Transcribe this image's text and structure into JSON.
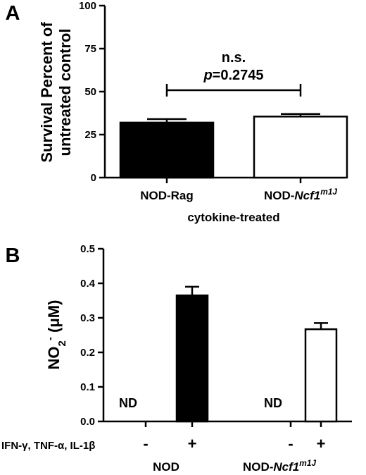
{
  "chart_data": [
    {
      "panel_label": "A",
      "type": "bar",
      "categories": [
        "NOD-Rag",
        "NOD-Ncf1m1J"
      ],
      "category_parts": [
        [
          {
            "text": "NOD-Rag",
            "italic": false
          }
        ],
        [
          {
            "text": "NOD-",
            "italic": false
          },
          {
            "text": "Ncf1",
            "italic": true
          },
          {
            "text": "m1J",
            "italic": true,
            "sup": true
          }
        ]
      ],
      "values": [
        32,
        35.5
      ],
      "errors": [
        2,
        1.5
      ],
      "fills": [
        "#000000",
        "#ffffff"
      ],
      "ylabel_line1": "Survival Percent of",
      "ylabel_line2": "untreated control",
      "xlabel": "cytokine-treated",
      "ylim": [
        0,
        100
      ],
      "yticks": [
        "0",
        "25",
        "50",
        "75",
        "100"
      ],
      "annotation_ns": "n.s.",
      "annotation_p_italic": "p",
      "annotation_p_rest": "=0.2745"
    },
    {
      "panel_label": "B",
      "type": "bar",
      "x": [
        "NOD -",
        "NOD +",
        "NOD-Ncf1m1J -",
        "NOD-Ncf1m1J +"
      ],
      "treatment_label": "IFN-γ, TNF-α, IL-1β",
      "treatment_signs": [
        "-",
        "+",
        "-",
        "+"
      ],
      "values": [
        null,
        0.365,
        null,
        0.267
      ],
      "errors": [
        null,
        0.025,
        null,
        0.018
      ],
      "value_text": [
        "ND",
        null,
        "ND",
        null
      ],
      "fills": [
        "#000000",
        "#000000",
        "#ffffff",
        "#ffffff"
      ],
      "ylabel_base": "NO",
      "ylabel_sub": "2",
      "ylabel_sup": "-",
      "ylabel_unit": " (μM)",
      "ylim": [
        0,
        0.5
      ],
      "yticks": [
        "0.0",
        "0.1",
        "0.2",
        "0.3",
        "0.4",
        "0.5"
      ],
      "groups": [
        [
          {
            "text": "NOD",
            "italic": false
          }
        ],
        [
          {
            "text": "NOD-",
            "italic": false
          },
          {
            "text": "Ncf1",
            "italic": true
          },
          {
            "text": "m1J",
            "italic": true,
            "sup": true
          }
        ]
      ]
    }
  ]
}
